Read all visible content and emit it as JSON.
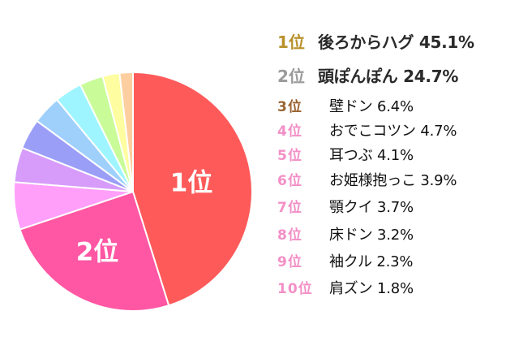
{
  "chart_data": {
    "type": "pie",
    "title": "",
    "start_angle": "12 o'clock, clockwise",
    "categories": [
      "後ろからハグ",
      "頭ぽんぽん",
      "壁ドン",
      "おでこコツン",
      "耳つぶ",
      "お姫様抱っこ",
      "顎クイ",
      "床ドン",
      "袖クル",
      "肩ズン"
    ],
    "values": [
      45.1,
      24.7,
      6.4,
      4.7,
      4.1,
      3.9,
      3.7,
      3.2,
      2.3,
      1.8
    ],
    "unit": "%",
    "slice_colors": [
      "#fe5a5a",
      "#ff57a4",
      "#ff9ffa",
      "#d79cfa",
      "#9b9ef6",
      "#9fd0fb",
      "#9ff5ff",
      "#c9fc98",
      "#fefda0",
      "#fdcfa0"
    ],
    "slice_labels": [
      {
        "index": 0,
        "text": "1位"
      },
      {
        "index": 1,
        "text": "2位"
      }
    ],
    "legend_position": "right"
  },
  "legend": [
    {
      "rank": "1位",
      "name": "後ろからハグ",
      "value": "45.1%",
      "rank_color": "#b8912a",
      "style": "big"
    },
    {
      "rank": "2位",
      "name": "頭ぽんぽん",
      "value": "24.7%",
      "rank_color": "#9a9a9a",
      "style": "big"
    },
    {
      "rank": "3位",
      "name": "壁ドン",
      "value": "6.4%",
      "rank_color": "#9a6330",
      "style": "small"
    },
    {
      "rank": "4位",
      "name": "おでこコツン",
      "value": "4.7%",
      "rank_color": "#f38fc6",
      "style": "small"
    },
    {
      "rank": "5位",
      "name": "耳つぶ",
      "value": "4.1%",
      "rank_color": "#f38fc6",
      "style": "small"
    },
    {
      "rank": "6位",
      "name": "お姫様抱っこ",
      "value": "3.9%",
      "rank_color": "#f38fc6",
      "style": "small"
    },
    {
      "rank": "7位",
      "name": "顎クイ",
      "value": "3.7%",
      "rank_color": "#f38fc6",
      "style": "small"
    },
    {
      "rank": "8位",
      "name": "床ドン",
      "value": "3.2%",
      "rank_color": "#f38fc6",
      "style": "small"
    },
    {
      "rank": "9位",
      "name": "袖クル",
      "value": "2.3%",
      "rank_color": "#f38fc6",
      "style": "small"
    },
    {
      "rank": "10位",
      "name": "肩ズン",
      "value": "1.8%",
      "rank_color": "#f38fc6",
      "style": "small"
    }
  ]
}
